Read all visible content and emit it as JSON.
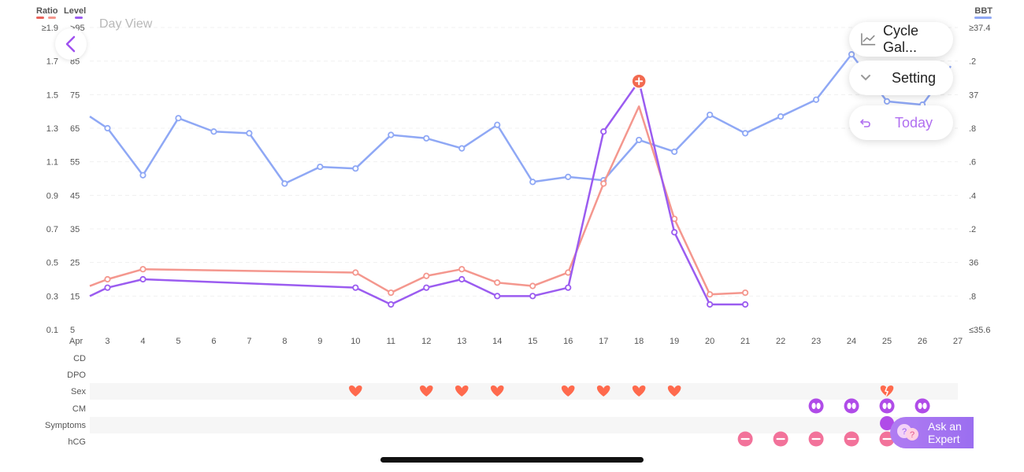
{
  "header": {
    "ratio_label": "Ratio",
    "level_label": "Level",
    "bbt_label": "BBT",
    "day_view": "Day View"
  },
  "buttons": {
    "cycle": "Cycle Gal...",
    "setting": "Setting",
    "today": "Today",
    "ask_line1": "Ask an",
    "ask_line2": "Expert"
  },
  "colors": {
    "ratio": "#f4978e",
    "level": "#9b5cf0",
    "bbt": "#8fa8f5",
    "heart": "#ff6a4d",
    "cm": "#b04ce8",
    "hcg": "#f2729a",
    "ratio_swatch": "#e9635b",
    "today_text": "#b06ff0"
  },
  "axes": {
    "ratio_ticks": [
      "≥1.9",
      "1.7",
      "1.5",
      "1.3",
      "1.1",
      "0.9",
      "0.7",
      "0.5",
      "0.3",
      "0.1"
    ],
    "level_ticks": [
      ">95",
      "85",
      "75",
      "65",
      "55",
      "45",
      "35",
      "25",
      "15",
      "5"
    ],
    "bbt_ticks": [
      "≥37.4",
      ".2",
      "37",
      ".8",
      ".6",
      ".4",
      ".2",
      "36",
      ".8",
      "≤35.6"
    ],
    "month": "Apr",
    "days": [
      "3",
      "4",
      "5",
      "6",
      "7",
      "8",
      "9",
      "10",
      "11",
      "12",
      "13",
      "14",
      "15",
      "16",
      "17",
      "18",
      "19",
      "20",
      "21",
      "22",
      "23",
      "24",
      "25",
      "26",
      "27"
    ]
  },
  "rows": {
    "labels": [
      "CD",
      "DPO",
      "Sex",
      "CM",
      "Symptoms",
      "hCG"
    ]
  },
  "chart_data": {
    "type": "line",
    "x_label": "",
    "series": [
      {
        "name": "Level",
        "x": [
          2.5,
          3,
          4,
          10,
          11,
          12,
          13,
          14,
          15,
          16,
          17,
          18,
          19,
          20,
          21
        ],
        "y": [
          15,
          17.5,
          20,
          17.5,
          12.5,
          17.5,
          20,
          15,
          15,
          17.5,
          64,
          79,
          34,
          12.5,
          12.5
        ]
      },
      {
        "name": "Ratio",
        "x": [
          2.5,
          3,
          4,
          10,
          11,
          12,
          13,
          14,
          15,
          16,
          17,
          18,
          19,
          20,
          21
        ],
        "y": [
          0.36,
          0.4,
          0.46,
          0.44,
          0.32,
          0.42,
          0.46,
          0.38,
          0.36,
          0.44,
          0.97,
          1.43,
          0.76,
          0.31,
          0.32
        ]
      },
      {
        "name": "BBT",
        "x": [
          2.5,
          3,
          4,
          5,
          6,
          7,
          8,
          9,
          10,
          11,
          12,
          13,
          14,
          15,
          16,
          17,
          18,
          19,
          20,
          21,
          22,
          23,
          24,
          25,
          26,
          26.8
        ],
        "y": [
          36.87,
          36.8,
          36.52,
          36.86,
          36.78,
          36.77,
          36.47,
          36.57,
          36.56,
          36.76,
          36.74,
          36.68,
          36.82,
          36.48,
          36.51,
          36.49,
          36.73,
          36.66,
          36.88,
          36.77,
          36.87,
          36.97,
          37.24,
          36.96,
          36.94,
          37.17
        ]
      }
    ],
    "x_range": [
      2.5,
      27
    ],
    "ratio_range": [
      0.1,
      1.9
    ],
    "level_range": [
      5,
      95
    ],
    "bbt_range": [
      35.6,
      37.4
    ],
    "marker_day": 18,
    "sex_days": [
      10,
      12,
      13,
      14,
      16,
      17,
      18,
      19
    ],
    "broken_heart_day": 25,
    "cm_days": [
      23,
      24,
      25,
      26
    ],
    "symptom_days": [
      25
    ],
    "hcg_days": [
      21,
      22,
      23,
      24,
      25
    ]
  }
}
